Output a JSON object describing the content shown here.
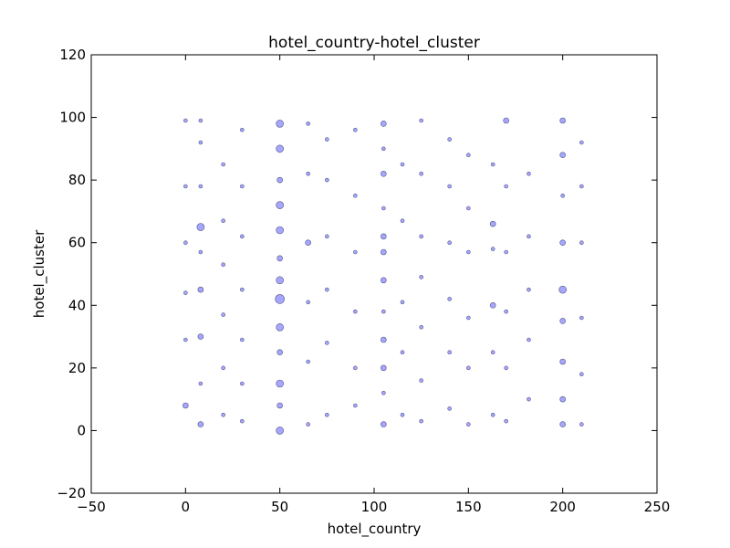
{
  "chart_data": {
    "type": "scatter",
    "title": "hotel_country-hotel_cluster",
    "x_label": "hotel_country",
    "y_label": "hotel_cluster",
    "xlim": [
      -50,
      250
    ],
    "ylim": [
      -20,
      120
    ],
    "xticks": [
      {
        "value": -50,
        "label": "−50"
      },
      0,
      50,
      100,
      150,
      200,
      250
    ],
    "yticks": [
      {
        "value": -20,
        "label": "−20"
      },
      0,
      20,
      40,
      60,
      80,
      100,
      120
    ],
    "grid": false,
    "series": [
      {
        "color": "#0000ff",
        "x": [
          50,
          50,
          50,
          50,
          50,
          50,
          50,
          50,
          50,
          50,
          50,
          50,
          50,
          105,
          105,
          105,
          105,
          105,
          105,
          105,
          105,
          105,
          105,
          105,
          105,
          8,
          8,
          8,
          8,
          8,
          8,
          8,
          8,
          8,
          200,
          200,
          200,
          200,
          200,
          200,
          200,
          200,
          200,
          170,
          170,
          170,
          170,
          170,
          170,
          163,
          163,
          163,
          163,
          163,
          163,
          210,
          210,
          210,
          210,
          210,
          210,
          0,
          0,
          0,
          0,
          0,
          0,
          20,
          20,
          20,
          20,
          20,
          20,
          30,
          30,
          30,
          30,
          30,
          30,
          30,
          65,
          65,
          65,
          65,
          65,
          65,
          75,
          75,
          75,
          75,
          75,
          75,
          90,
          90,
          90,
          90,
          90,
          90,
          125,
          125,
          125,
          125,
          125,
          125,
          125,
          140,
          140,
          140,
          140,
          140,
          140,
          150,
          150,
          150,
          150,
          150,
          150,
          182,
          182,
          182,
          182,
          182,
          115,
          115,
          115,
          115,
          115
        ],
        "values": [
          0,
          8,
          15,
          25,
          33,
          42,
          48,
          55,
          64,
          72,
          80,
          90,
          98,
          2,
          12,
          20,
          29,
          38,
          48,
          57,
          62,
          71,
          82,
          90,
          98,
          2,
          15,
          30,
          45,
          57,
          65,
          78,
          92,
          99,
          2,
          10,
          22,
          35,
          45,
          60,
          75,
          88,
          99,
          3,
          20,
          38,
          57,
          78,
          99,
          5,
          25,
          40,
          58,
          66,
          85,
          2,
          18,
          36,
          60,
          78,
          92,
          8,
          29,
          44,
          60,
          78,
          99,
          5,
          20,
          37,
          53,
          67,
          85,
          3,
          15,
          29,
          45,
          62,
          78,
          96,
          2,
          22,
          41,
          60,
          82,
          98,
          5,
          28,
          45,
          62,
          80,
          93,
          8,
          20,
          38,
          57,
          75,
          96,
          3,
          16,
          33,
          49,
          62,
          82,
          99,
          7,
          25,
          42,
          60,
          78,
          93,
          2,
          20,
          36,
          57,
          71,
          88,
          10,
          29,
          45,
          62,
          82,
          5,
          25,
          41,
          67,
          85
        ],
        "sizes": [
          4,
          3,
          4,
          3,
          4,
          5,
          4,
          3,
          4,
          4,
          3,
          4,
          4,
          3,
          2,
          3,
          3,
          2,
          3,
          3,
          3,
          2,
          3,
          2,
          3,
          3,
          2,
          3,
          3,
          2,
          4,
          2,
          2,
          2,
          3,
          3,
          3,
          3,
          4,
          3,
          2,
          3,
          3,
          2,
          2,
          2,
          2,
          2,
          3,
          2,
          2,
          3,
          2,
          3,
          2,
          2,
          2,
          2,
          2,
          2,
          2,
          3,
          2,
          2,
          2,
          2,
          2,
          2,
          2,
          2,
          2,
          2,
          2,
          2,
          2,
          2,
          2,
          2,
          2,
          2,
          2,
          2,
          2,
          3,
          2,
          2,
          2,
          2,
          2,
          2,
          2,
          2,
          2,
          2,
          2,
          2,
          2,
          2,
          2,
          2,
          2,
          2,
          2,
          2,
          2,
          2,
          2,
          2,
          2,
          2,
          2,
          2,
          2,
          2,
          2,
          2,
          2,
          2,
          2,
          2,
          2,
          2,
          2,
          2,
          2,
          2,
          2
        ]
      }
    ]
  }
}
